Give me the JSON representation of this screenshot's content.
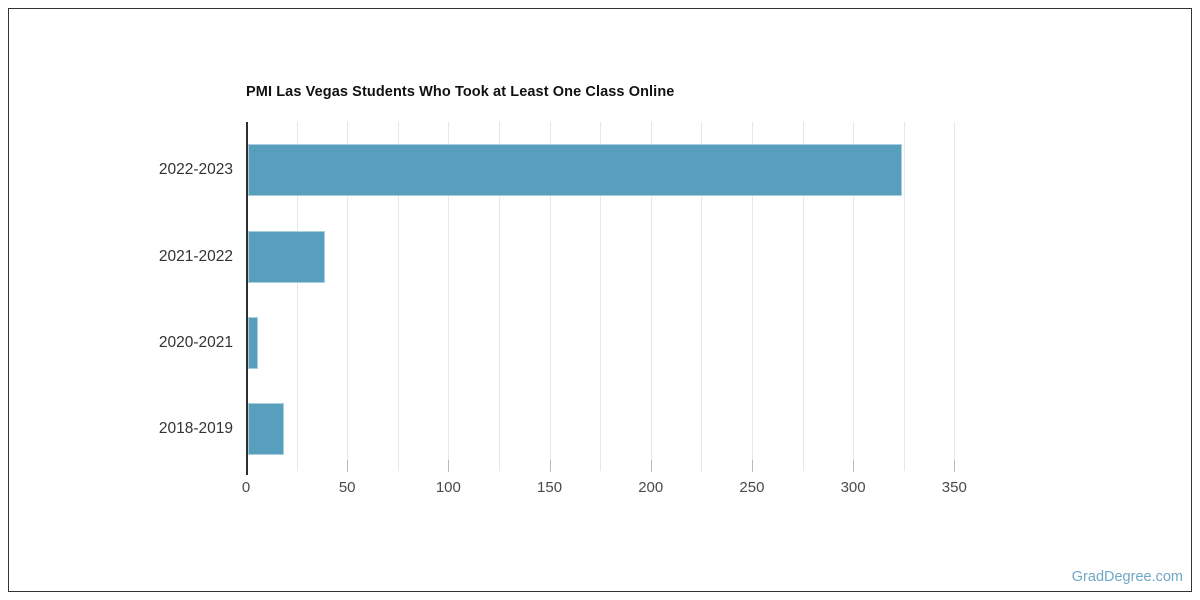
{
  "chart_data": {
    "type": "bar",
    "orientation": "horizontal",
    "title": "PMI Las Vegas Students Who Took at Least One Class Online",
    "categories": [
      "2022-2023",
      "2021-2022",
      "2020-2021",
      "2018-2019"
    ],
    "values": [
      323,
      38,
      5,
      18
    ],
    "xlabel": "",
    "ylabel": "",
    "xlim": [
      0,
      350
    ],
    "xticks": [
      0,
      50,
      100,
      150,
      200,
      250,
      300,
      350
    ],
    "grid_interval": 25,
    "grid": true,
    "legend": false,
    "colors": {
      "bar_fill": "#589FBD",
      "bar_border": "#A9CFDF",
      "axis_line": "#2E2E2E",
      "gridline": "#E6E6E6",
      "tick": "#B9B9B9",
      "category_label": "#333333",
      "tick_label": "#4A4A4A",
      "title": "#111111"
    }
  },
  "watermark": {
    "text": "GradDegree.com",
    "color": "#6FA7C5"
  }
}
